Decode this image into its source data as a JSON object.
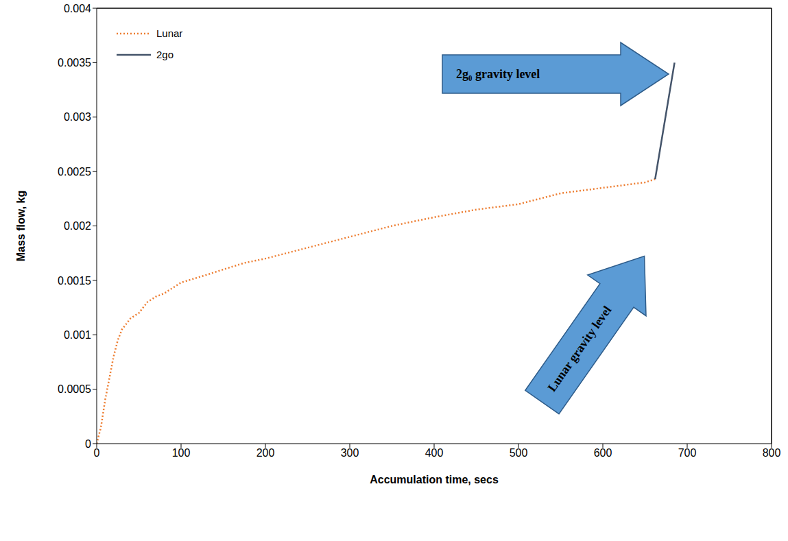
{
  "chart_data": {
    "type": "line",
    "x_label": "Accumulation time, secs",
    "y_label": "Mass flow, kg",
    "xlim": [
      0,
      800
    ],
    "xticks": [
      0,
      100,
      200,
      300,
      400,
      500,
      600,
      700,
      800
    ],
    "ylim": [
      0,
      0.004
    ],
    "yticks": [
      0,
      0.0005,
      0.001,
      0.0015,
      0.002,
      0.0025,
      0.003,
      0.0035,
      0.004
    ],
    "grid": false,
    "legend": "top-left",
    "series": [
      {
        "name": "Lunar",
        "color": "#ed7d31",
        "line_style": "dotted",
        "x": [
          0,
          5,
          10,
          15,
          20,
          25,
          30,
          40,
          50,
          60,
          70,
          80,
          100,
          130,
          150,
          175,
          200,
          250,
          300,
          350,
          400,
          450,
          500,
          550,
          600,
          650,
          662
        ],
        "values": [
          0,
          0.00015,
          0.0004,
          0.0006,
          0.0008,
          0.00095,
          0.00105,
          0.00115,
          0.0012,
          0.0013,
          0.00135,
          0.00138,
          0.00148,
          0.00155,
          0.0016,
          0.00166,
          0.0017,
          0.0018,
          0.0019,
          0.002,
          0.00208,
          0.00215,
          0.0022,
          0.0023,
          0.00235,
          0.0024,
          0.00243
        ]
      },
      {
        "name": "2go",
        "color": "#44546a",
        "line_style": "solid",
        "x": [
          662,
          685
        ],
        "values": [
          0.00243,
          0.0035
        ]
      }
    ],
    "annotations": [
      "2g₀ gravity level",
      "Lunar gravity level"
    ]
  }
}
